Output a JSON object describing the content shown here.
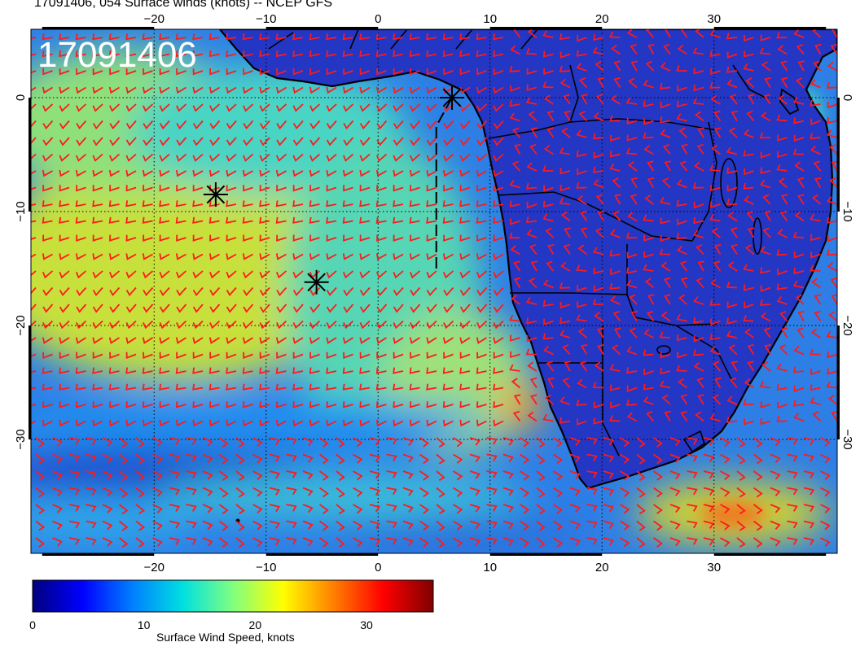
{
  "title": "17091406, 054 Surface winds (knots) -- NCEP GFS",
  "map_label": "17091406",
  "extent": {
    "lon": [
      -31,
      41
    ],
    "lat": [
      -40,
      6
    ]
  },
  "lon_ticks": [
    -20,
    -10,
    0,
    10,
    20,
    30
  ],
  "lat_ticks": [
    0,
    -10,
    -20,
    -30
  ],
  "lon_tick_labels": [
    "−20",
    "−10",
    "0",
    "10",
    "20",
    "30"
  ],
  "lat_tick_labels": [
    "0",
    "−10",
    "−20",
    "−30"
  ],
  "colorbar": {
    "label": "Surface Wind Speed, knots",
    "ticks": [
      0,
      10,
      20,
      30
    ],
    "tick_labels": [
      "0",
      "10",
      "20",
      "30"
    ],
    "range": [
      0,
      36
    ],
    "colors": [
      "#00007f",
      "#0000ff",
      "#0080ff",
      "#00e0e0",
      "#80ff80",
      "#ffff00",
      "#ff8000",
      "#ff0000",
      "#7f0000"
    ]
  },
  "storm_markers": [
    {
      "lon": -14.5,
      "lat": -8.5
    },
    {
      "lon": -5.5,
      "lat": -16.2
    },
    {
      "lon": 6.6,
      "lat": 0
    }
  ],
  "track_line": {
    "lon": [
      5.2,
      5.2,
      6.6
    ],
    "lat": [
      -15,
      -2.5,
      0
    ]
  },
  "colors": {
    "ocean_low": "#1f4fd6",
    "land": "#2436c4",
    "barb": "#ff1a1a",
    "coast": "#000000",
    "marker": "#000000"
  }
}
